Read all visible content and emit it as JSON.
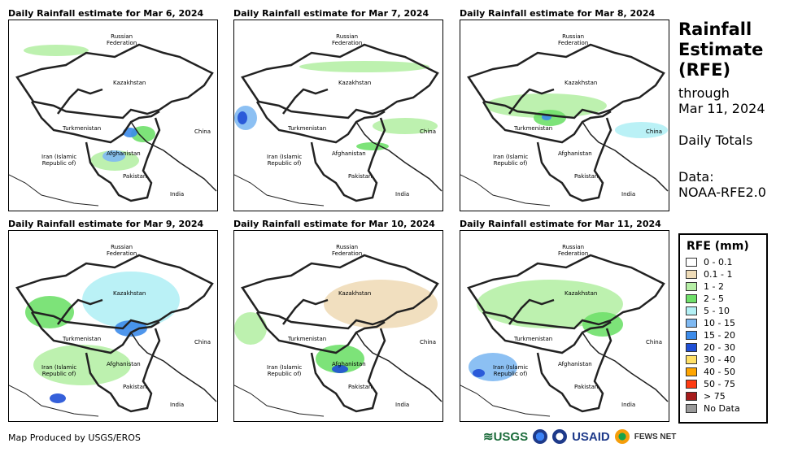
{
  "panels": [
    {
      "title": "Daily Rainfall estimate for Mar 6, 2024"
    },
    {
      "title": "Daily Rainfall estimate for Mar 7, 2024"
    },
    {
      "title": "Daily Rainfall estimate for Mar 8, 2024"
    },
    {
      "title": "Daily Rainfall estimate for Mar 9, 2024"
    },
    {
      "title": "Daily Rainfall estimate for Mar 10, 2024"
    },
    {
      "title": "Daily Rainfall estimate for Mar 11, 2024"
    }
  ],
  "map_labels": {
    "russia": "Russian\nFederation",
    "kazakhstan": "Kazakhstan",
    "turkmenistan": "Turkmenistan",
    "china": "China",
    "iran": "Iran  (Islamic\nRepublic of)",
    "afghanistan": "Afghanistan",
    "pakistan": "Pakistan",
    "india": "India"
  },
  "side_title": {
    "line1": "Rainfall",
    "line2": "Estimate",
    "line3": "(RFE)",
    "through": "through",
    "date": "Mar 11, 2024",
    "totals": "Daily Totals",
    "data_label": "Data:",
    "data_source": "NOAA-RFE2.0"
  },
  "legend": {
    "title": "RFE (mm)",
    "items": [
      {
        "label": "0 - 0.1",
        "color": "#ffffff"
      },
      {
        "label": "0.1 - 1",
        "color": "#efdcb8"
      },
      {
        "label": "1 - 2",
        "color": "#b6efa6"
      },
      {
        "label": "2 - 5",
        "color": "#6fe06a"
      },
      {
        "label": "5 - 10",
        "color": "#b3f0f5"
      },
      {
        "label": "10 - 15",
        "color": "#7fb9f2"
      },
      {
        "label": "15 - 20",
        "color": "#3c8bea"
      },
      {
        "label": "20 - 30",
        "color": "#1f4fd6"
      },
      {
        "label": "30 - 40",
        "color": "#ffe066"
      },
      {
        "label": "40 - 50",
        "color": "#ffa500"
      },
      {
        "label": "50 - 75",
        "color": "#ff3b12"
      },
      {
        "label": "> 75",
        "color": "#a61b1b"
      },
      {
        "label": "No Data",
        "color": "#9a9a9a"
      }
    ]
  },
  "footer": {
    "credit": "Map Produced by USGS/EROS",
    "logos": {
      "usgs": "≋USGS",
      "usaid": "USAID",
      "fews": "FEWS NET"
    }
  }
}
